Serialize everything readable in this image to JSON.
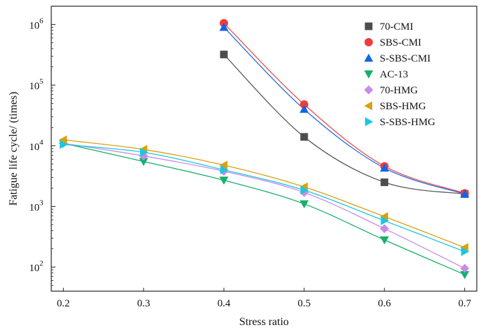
{
  "chart_data": {
    "type": "scatter",
    "title": "",
    "xlabel": "Stress ratio",
    "ylabel": "Fatigue life cycle/ (times)",
    "xlim": [
      0.185,
      0.715
    ],
    "ylim": [
      40,
      2000000
    ],
    "yscale": "log",
    "grid": false,
    "legend_position": "top-right",
    "x_ticks": [
      0.2,
      0.3,
      0.4,
      0.5,
      0.6,
      0.7
    ],
    "x_tick_labels": [
      "0.2",
      "0.3",
      "0.4",
      "0.5",
      "0.6",
      "0.7"
    ],
    "y_ticks": [
      100,
      1000,
      10000,
      100000,
      1000000
    ],
    "y_tick_labels": [
      {
        "base": "10",
        "exp": "2"
      },
      {
        "base": "10",
        "exp": "3"
      },
      {
        "base": "10",
        "exp": "4"
      },
      {
        "base": "10",
        "exp": "5"
      },
      {
        "base": "10",
        "exp": "6"
      }
    ],
    "series": [
      {
        "name": "70-CMI",
        "marker": "square",
        "color": "#4d4d4d",
        "line_color": "#595959",
        "x": [
          0.4,
          0.5,
          0.6,
          0.7
        ],
        "y": [
          320000,
          14000,
          2500,
          1600
        ]
      },
      {
        "name": "SBS-CMI",
        "marker": "circle",
        "color": "#f03c3c",
        "line_color": "#f04a4a",
        "x": [
          0.4,
          0.5,
          0.6,
          0.7
        ],
        "y": [
          1050000,
          48000,
          4600,
          1650
        ]
      },
      {
        "name": "S-SBS-CMI",
        "marker": "triangle-up",
        "color": "#1464e6",
        "line_color": "#1e6ee8",
        "x": [
          0.4,
          0.5,
          0.6,
          0.7
        ],
        "y": [
          900000,
          40000,
          4300,
          1600
        ]
      },
      {
        "name": "AC-13",
        "marker": "triangle-down",
        "color": "#16b06a",
        "line_color": "#16b06a",
        "x": [
          0.2,
          0.3,
          0.4,
          0.5,
          0.6,
          0.7
        ],
        "y": [
          11000,
          5500,
          2700,
          1100,
          280,
          75
        ]
      },
      {
        "name": "70-HMG",
        "marker": "diamond",
        "color": "#c98ae8",
        "line_color": "#c98ae8",
        "x": [
          0.2,
          0.3,
          0.4,
          0.5,
          0.6,
          0.7
        ],
        "y": [
          11000,
          6800,
          3800,
          1700,
          430,
          95
        ]
      },
      {
        "name": "SBS-HMG",
        "marker": "triangle-left",
        "color": "#d9a010",
        "line_color": "#d9a010",
        "x": [
          0.2,
          0.3,
          0.4,
          0.5,
          0.6,
          0.7
        ],
        "y": [
          12500,
          8700,
          4800,
          2100,
          680,
          210
        ]
      },
      {
        "name": "S-SBS-HMG",
        "marker": "triangle-right",
        "color": "#19c8e0",
        "line_color": "#19c8e0",
        "x": [
          0.2,
          0.3,
          0.4,
          0.5,
          0.6,
          0.7
        ],
        "y": [
          10500,
          7800,
          4000,
          1850,
          580,
          180
        ]
      }
    ]
  }
}
